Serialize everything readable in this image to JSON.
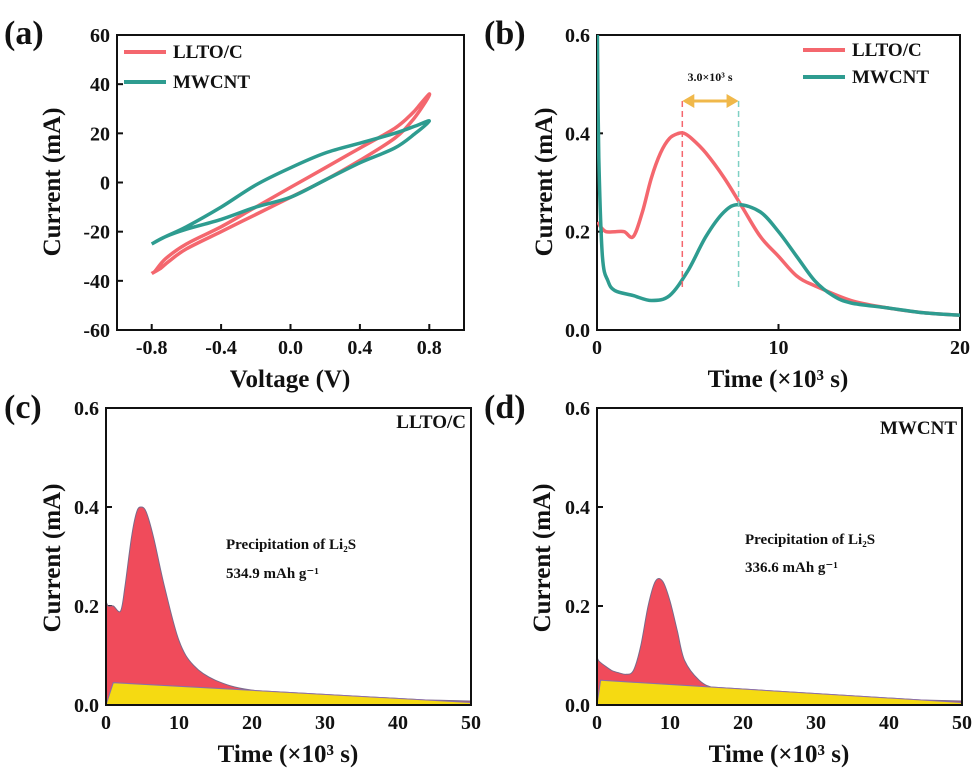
{
  "colors": {
    "llto": "#F4676E",
    "mwcnt": "#2E9C90",
    "fill_top": "#F04B5B",
    "fill_bottom": "#F5DA12",
    "arrow": "#F0B84A",
    "boundary": "#8E6FA8"
  },
  "chart_data": [
    {
      "panel": "(a)",
      "type": "line",
      "xlabel": "Voltage (V)",
      "ylabel": "Current (mA)",
      "xlim": [
        -1.0,
        1.0
      ],
      "ylim": [
        -60,
        60
      ],
      "xticks": [
        "-0.8",
        "-0.4",
        "0.0",
        "0.4",
        "0.8"
      ],
      "yticks": [
        "-60",
        "-40",
        "-20",
        "0",
        "20",
        "40",
        "60"
      ],
      "legend": {
        "position": "top-left",
        "entries": [
          "LLTO/C",
          "MWCNT"
        ]
      },
      "series": [
        {
          "name": "LLTO/C",
          "color": "#F4676E",
          "x": [
            -0.8,
            -0.78,
            -0.72,
            -0.6,
            -0.4,
            -0.2,
            0.0,
            0.2,
            0.4,
            0.6,
            0.7,
            0.75,
            0.8,
            0.78,
            0.7,
            0.6,
            0.4,
            0.2,
            0.0,
            -0.2,
            -0.4,
            -0.6,
            -0.7,
            -0.75,
            -0.8
          ],
          "y": [
            -37,
            -36,
            -31,
            -25,
            -18,
            -10,
            -2,
            6,
            14,
            22,
            28,
            32,
            36,
            33,
            25,
            18,
            9,
            1,
            -6,
            -13,
            -20,
            -27,
            -32,
            -35,
            -37
          ]
        },
        {
          "name": "MWCNT",
          "color": "#2E9C90",
          "x": [
            -0.8,
            -0.72,
            -0.6,
            -0.4,
            -0.2,
            0.0,
            0.2,
            0.4,
            0.6,
            0.72,
            0.8,
            0.72,
            0.6,
            0.4,
            0.2,
            0.0,
            -0.2,
            -0.4,
            -0.6,
            -0.72,
            -0.8
          ],
          "y": [
            -25,
            -22,
            -18,
            -10,
            -1,
            6,
            12,
            16,
            20,
            23,
            25,
            20,
            14,
            8,
            1,
            -6,
            -10,
            -15,
            -19,
            -22,
            -25
          ]
        }
      ]
    },
    {
      "panel": "(b)",
      "type": "line",
      "xlabel": "Time (×10³ s)",
      "ylabel": "Current (mA)",
      "xlim": [
        0,
        20
      ],
      "ylim": [
        0,
        0.6
      ],
      "xticks": [
        "0",
        "10",
        "20"
      ],
      "yticks": [
        "0.0",
        "0.2",
        "0.4",
        "0.6"
      ],
      "legend": {
        "position": "top-right",
        "entries": [
          "LLTO/C",
          "MWCNT"
        ]
      },
      "annotation": "3.0×10³ s",
      "annotation_range": [
        4.7,
        7.8
      ],
      "series": [
        {
          "name": "LLTO/C",
          "color": "#F4676E",
          "x": [
            0.05,
            0.2,
            0.5,
            1.0,
            1.5,
            2.0,
            2.5,
            3.0,
            3.5,
            4.0,
            4.5,
            4.8,
            5.2,
            6.0,
            7.0,
            8.0,
            9.0,
            10.0,
            11.0,
            12.0,
            14.0,
            16.0,
            18.0,
            20.0
          ],
          "y": [
            0.22,
            0.21,
            0.2,
            0.2,
            0.2,
            0.19,
            0.24,
            0.31,
            0.36,
            0.39,
            0.4,
            0.4,
            0.39,
            0.36,
            0.31,
            0.25,
            0.19,
            0.15,
            0.11,
            0.09,
            0.06,
            0.045,
            0.035,
            0.03
          ]
        },
        {
          "name": "MWCNT",
          "color": "#2E9C90",
          "x": [
            0.02,
            0.1,
            0.3,
            0.6,
            1.0,
            2.0,
            3.0,
            4.0,
            5.0,
            6.0,
            7.0,
            7.8,
            9.0,
            10.0,
            11.0,
            12.0,
            13.0,
            14.0,
            16.0,
            18.0,
            20.0
          ],
          "y": [
            0.6,
            0.35,
            0.15,
            0.1,
            0.08,
            0.07,
            0.06,
            0.07,
            0.12,
            0.19,
            0.24,
            0.255,
            0.24,
            0.2,
            0.15,
            0.1,
            0.07,
            0.055,
            0.045,
            0.035,
            0.03
          ]
        }
      ]
    },
    {
      "panel": "(c)",
      "type": "area",
      "xlabel": "Time (×10³ s)",
      "ylabel": "Current (mA)",
      "xlim": [
        0,
        50
      ],
      "ylim": [
        0,
        0.6
      ],
      "xticks": [
        "0",
        "10",
        "20",
        "30",
        "40",
        "50"
      ],
      "yticks": [
        "0.0",
        "0.2",
        "0.4",
        "0.6"
      ],
      "label": "LLTO/C",
      "annotation": "Precipitation of Li₂S",
      "capacity": "534.9 mAh g⁻¹",
      "series": [
        {
          "name": "LLTO/C",
          "x": [
            0,
            0.3,
            1.0,
            2.0,
            2.6,
            3.5,
            4.2,
            4.8,
            5.5,
            6.5,
            8.0,
            10.0,
            12.0,
            15.0,
            20.0,
            30.0,
            40.0,
            50.0
          ],
          "y": [
            0.21,
            0.2,
            0.2,
            0.19,
            0.24,
            0.34,
            0.39,
            0.4,
            0.39,
            0.34,
            0.24,
            0.13,
            0.08,
            0.05,
            0.03,
            0.02,
            0.012,
            0.008
          ]
        },
        {
          "name": "baseline",
          "x": [
            0,
            1.0,
            50.0
          ],
          "y": [
            0.0,
            0.045,
            0.005
          ]
        }
      ]
    },
    {
      "panel": "(d)",
      "type": "area",
      "xlabel": "Time (×10³ s)",
      "ylabel": "Current (mA)",
      "xlim": [
        0,
        50
      ],
      "ylim": [
        0,
        0.6
      ],
      "xticks": [
        "0",
        "10",
        "20",
        "30",
        "40",
        "50"
      ],
      "yticks": [
        "0.0",
        "0.2",
        "0.4",
        "0.6"
      ],
      "label": "MWCNT",
      "annotation": "Precipitation of Li₂S",
      "capacity": "336.6 mAh g⁻¹",
      "series": [
        {
          "name": "MWCNT",
          "x": [
            0,
            0.2,
            1.0,
            2.0,
            3.0,
            4.0,
            5.0,
            6.0,
            7.0,
            8.0,
            9.0,
            10.0,
            11.0,
            12.0,
            14.0,
            16.0,
            20.0,
            30.0,
            40.0,
            50.0
          ],
          "y": [
            0.1,
            0.09,
            0.08,
            0.07,
            0.065,
            0.062,
            0.07,
            0.12,
            0.2,
            0.25,
            0.25,
            0.21,
            0.15,
            0.09,
            0.05,
            0.035,
            0.025,
            0.018,
            0.012,
            0.008
          ]
        },
        {
          "name": "baseline",
          "x": [
            0,
            0.5,
            50.0
          ],
          "y": [
            0.0,
            0.05,
            0.005
          ]
        }
      ]
    }
  ]
}
